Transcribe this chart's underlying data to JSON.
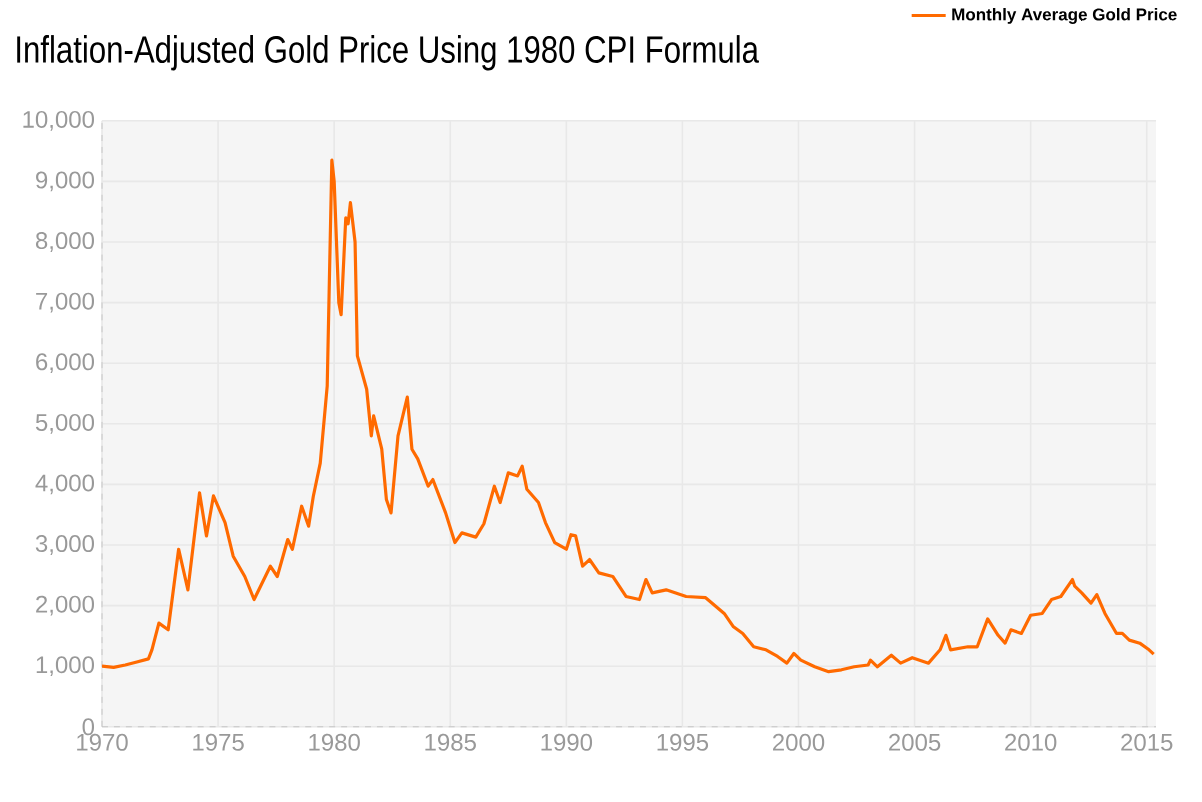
{
  "chart_data": {
    "type": "line",
    "title": "Inflation-Adjusted Gold Price Using 1980 CPI Formula",
    "series": [
      {
        "name": "Monthly Average Gold Price",
        "color": "#ff6a00",
        "x": [
          1970.0,
          1970.5,
          1971.0,
          1971.5,
          1972.0,
          1972.15,
          1972.45,
          1972.85,
          1973.3,
          1973.7,
          1974.2,
          1974.5,
          1974.8,
          1975.3,
          1975.65,
          1976.15,
          1976.55,
          1977.25,
          1977.55,
          1978.0,
          1978.2,
          1978.6,
          1978.9,
          1979.1,
          1979.4,
          1979.7,
          1979.9,
          1980.0,
          1980.2,
          1980.3,
          1980.5,
          1980.6,
          1980.7,
          1980.9,
          1981.0,
          1981.4,
          1981.6,
          1981.7,
          1982.05,
          1982.25,
          1982.45,
          1982.75,
          1983.15,
          1983.35,
          1983.6,
          1984.05,
          1984.25,
          1984.8,
          1985.2,
          1985.5,
          1986.1,
          1986.45,
          1986.9,
          1987.15,
          1987.5,
          1987.9,
          1988.1,
          1988.3,
          1988.8,
          1989.1,
          1989.5,
          1990.0,
          1990.2,
          1990.4,
          1990.7,
          1991.0,
          1991.4,
          1992.0,
          1992.57,
          1993.15,
          1993.43,
          1993.7,
          1994.3,
          1995.16,
          1996.0,
          1996.8,
          1997.2,
          1997.6,
          1998.07,
          1998.6,
          1999.1,
          1999.5,
          1999.8,
          2000.1,
          2000.7,
          2001.3,
          2001.85,
          2002.4,
          2003.0,
          2003.1,
          2003.4,
          2004.0,
          2004.4,
          2004.9,
          2005.6,
          2006.1,
          2006.35,
          2006.55,
          2007.3,
          2007.7,
          2008.15,
          2008.6,
          2008.9,
          2009.15,
          2009.6,
          2010.0,
          2010.5,
          2010.9,
          2011.3,
          2011.8,
          2011.9,
          2012.2,
          2012.6,
          2012.85,
          2013.2,
          2013.7,
          2013.95,
          2014.25,
          2014.7,
          2015.1,
          2015.3
        ],
        "values": [
          1000,
          980,
          1020,
          1070,
          1120,
          1270,
          1710,
          1600,
          2930,
          2260,
          3860,
          3150,
          3810,
          3370,
          2815,
          2480,
          2100,
          2650,
          2480,
          3090,
          2930,
          3640,
          3310,
          3800,
          4350,
          5620,
          9350,
          9000,
          7000,
          6800,
          8400,
          8300,
          8650,
          8000,
          6120,
          5570,
          4800,
          5130,
          4580,
          3750,
          3530,
          4800,
          5440,
          4580,
          4420,
          3970,
          4080,
          3530,
          3040,
          3200,
          3130,
          3350,
          3970,
          3700,
          4190,
          4140,
          4300,
          3920,
          3700,
          3370,
          3040,
          2930,
          3170,
          3150,
          2650,
          2760,
          2540,
          2480,
          2150,
          2100,
          2430,
          2210,
          2260,
          2150,
          2130,
          1870,
          1650,
          1540,
          1320,
          1270,
          1160,
          1050,
          1210,
          1100,
          990,
          910,
          940,
          990,
          1020,
          1100,
          990,
          1180,
          1050,
          1140,
          1050,
          1270,
          1510,
          1270,
          1320,
          1320,
          1780,
          1510,
          1380,
          1600,
          1540,
          1840,
          1870,
          2100,
          2150,
          2430,
          2320,
          2210,
          2040,
          2180,
          1870,
          1540,
          1540,
          1430,
          1380,
          1270,
          1200
        ]
      }
    ],
    "xlim": [
      1970,
      2015.4
    ],
    "xticks": [
      1970,
      1975,
      1980,
      1985,
      1990,
      1995,
      2000,
      2005,
      2010,
      2015
    ],
    "ylim": [
      0,
      10000
    ],
    "yticks": [
      0,
      {
        "value": 1000,
        "label": "1,000"
      },
      {
        "value": 2000,
        "label": "2,000"
      },
      {
        "value": 3000,
        "label": "3,000"
      },
      {
        "value": 4000,
        "label": "4,000"
      },
      {
        "value": 5000,
        "label": "5,000"
      },
      {
        "value": 6000,
        "label": "6,000"
      },
      {
        "value": 7000,
        "label": "7,000"
      },
      {
        "value": 8000,
        "label": "8,000"
      },
      {
        "value": 9000,
        "label": "9,000"
      },
      {
        "value": 10000,
        "label": "10,000"
      }
    ],
    "grid": true,
    "legend": "top right",
    "marker": "none",
    "line_style": "solid"
  }
}
